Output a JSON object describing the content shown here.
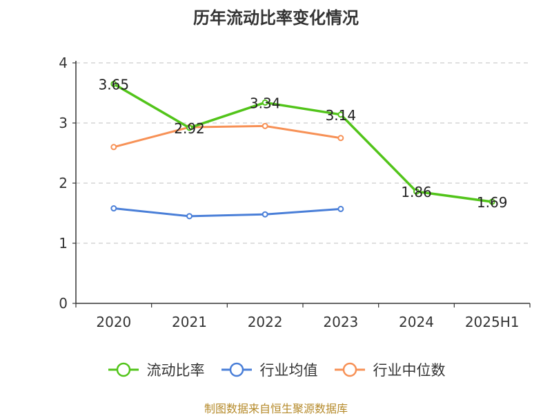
{
  "chart_data": {
    "type": "line",
    "title": "历年流动比率变化情况",
    "categories": [
      "2020",
      "2021",
      "2022",
      "2023",
      "2024",
      "2025H1"
    ],
    "ylim": [
      0,
      4
    ],
    "yticks": [
      "0",
      "1",
      "2",
      "3",
      "4"
    ],
    "grid": "horizontal dashed",
    "legend_placement": "bottom",
    "series": [
      {
        "name": "流动比率",
        "color": "#52c41a",
        "values": [
          3.65,
          2.92,
          3.34,
          3.14,
          1.86,
          1.69
        ],
        "labels": [
          "3.65",
          "2.92",
          "3.34",
          "3.14",
          "1.86",
          "1.69"
        ]
      },
      {
        "name": "行业均值",
        "color": "#4a7fd8",
        "values": [
          1.58,
          1.45,
          1.48,
          1.57,
          null,
          null
        ]
      },
      {
        "name": "行业中位数",
        "color": "#f79156",
        "values": [
          2.6,
          2.93,
          2.95,
          2.75,
          null,
          null
        ]
      }
    ]
  },
  "source": "制图数据来自恒生聚源数据库"
}
